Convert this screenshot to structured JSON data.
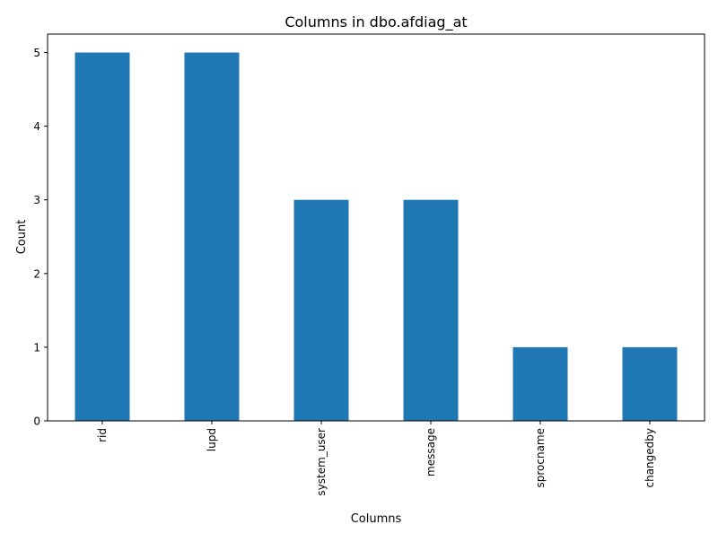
{
  "chart_data": {
    "type": "bar",
    "title": "Columns in dbo.afdiag_at",
    "xlabel": "Columns",
    "ylabel": "Count",
    "categories": [
      "rid",
      "lupd",
      "system_user",
      "message",
      "sprocname",
      "changedby"
    ],
    "values": [
      5,
      5,
      3,
      3,
      1,
      1
    ],
    "ylim": [
      0,
      5.25
    ],
    "yticks": [
      0,
      1,
      2,
      3,
      4,
      5
    ],
    "bar_color": "#1f77b4",
    "grid": false,
    "legend": "none"
  }
}
